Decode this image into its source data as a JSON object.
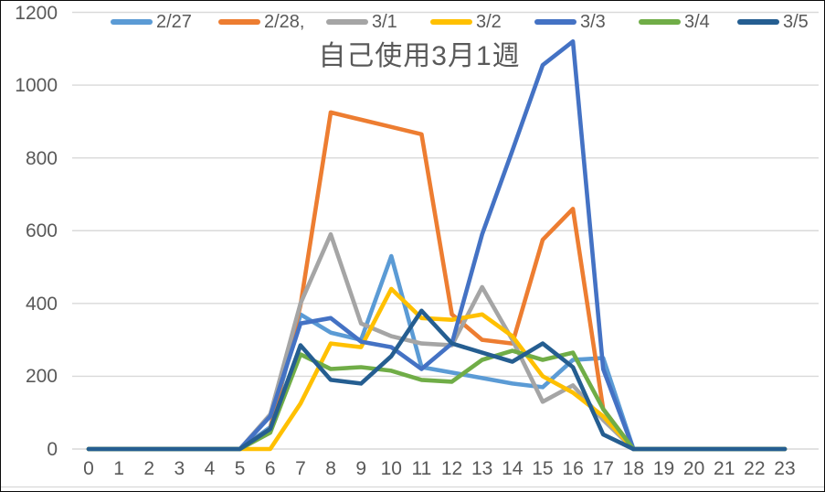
{
  "title": "自己使用3月1週",
  "colors": {
    "background": "#FFFFFF",
    "border": "#0A0A0A",
    "grid": "#D9D9D9",
    "axis_text": "#595959",
    "title_text": "#595959"
  },
  "axes": {
    "y_tick_labels": [
      "0",
      "200",
      "400",
      "600",
      "800",
      "1000",
      "1200"
    ],
    "x_tick_labels": [
      "0",
      "1",
      "2",
      "3",
      "4",
      "5",
      "6",
      "7",
      "8",
      "9",
      "10",
      "11",
      "12",
      "13",
      "14",
      "15",
      "16",
      "17",
      "18",
      "19",
      "20",
      "21",
      "22",
      "23"
    ]
  },
  "chart_data": {
    "type": "line",
    "title": "自己使用3月1週",
    "xlabel": "",
    "ylabel": "",
    "x": [
      0,
      1,
      2,
      3,
      4,
      5,
      6,
      7,
      8,
      9,
      10,
      11,
      12,
      13,
      14,
      15,
      16,
      17,
      18,
      19,
      20,
      21,
      22,
      23
    ],
    "ylim": [
      0,
      1200
    ],
    "ytick_interval": 200,
    "grid": true,
    "legend_position": "top",
    "series": [
      {
        "name": "2/27",
        "legend_label": "2/27",
        "color": "#5B9BD5",
        "values": [
          0,
          0,
          0,
          0,
          0,
          0,
          60,
          370,
          320,
          300,
          530,
          225,
          210,
          195,
          180,
          170,
          245,
          250,
          0,
          0,
          0,
          0,
          0,
          0
        ]
      },
      {
        "name": "2/28",
        "legend_label": "2/28,",
        "color": "#ED7D31",
        "values": [
          0,
          0,
          0,
          0,
          0,
          0,
          55,
          395,
          925,
          905,
          885,
          865,
          370,
          300,
          290,
          575,
          660,
          110,
          0,
          0,
          0,
          0,
          0,
          0
        ]
      },
      {
        "name": "3/1",
        "legend_label": "3/1",
        "color": "#A5A5A5",
        "values": [
          0,
          0,
          0,
          0,
          0,
          0,
          95,
          400,
          590,
          345,
          310,
          290,
          285,
          445,
          300,
          130,
          175,
          80,
          0,
          0,
          0,
          0,
          0,
          0
        ]
      },
      {
        "name": "3/2",
        "legend_label": "3/2",
        "color": "#FFC000",
        "values": [
          0,
          0,
          0,
          0,
          0,
          0,
          0,
          125,
          290,
          280,
          440,
          360,
          355,
          370,
          310,
          200,
          155,
          90,
          0,
          0,
          0,
          0,
          0,
          0
        ]
      },
      {
        "name": "3/3",
        "legend_label": "3/3",
        "color": "#4472C4",
        "values": [
          0,
          0,
          0,
          0,
          0,
          0,
          90,
          345,
          360,
          295,
          280,
          220,
          290,
          590,
          820,
          1055,
          1120,
          220,
          0,
          0,
          0,
          0,
          0,
          0
        ]
      },
      {
        "name": "3/4",
        "legend_label": "3/4",
        "color": "#70AD47",
        "values": [
          0,
          0,
          0,
          0,
          0,
          0,
          45,
          260,
          220,
          225,
          215,
          190,
          185,
          245,
          270,
          245,
          265,
          110,
          0,
          0,
          0,
          0,
          0,
          0
        ]
      },
      {
        "name": "3/5",
        "legend_label": "3/5",
        "color": "#255E91",
        "values": [
          0,
          0,
          0,
          0,
          0,
          0,
          55,
          285,
          190,
          180,
          255,
          380,
          290,
          265,
          240,
          290,
          225,
          40,
          0,
          0,
          0,
          0,
          0,
          0
        ]
      }
    ]
  }
}
